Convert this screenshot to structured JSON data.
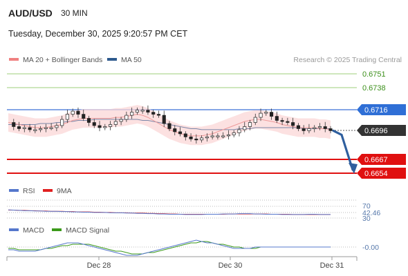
{
  "header": {
    "pair": "AUD/USD",
    "timeframe": "30 MIN",
    "datetime": "Tuesday, December 30, 2025 9:20:57 PM CET"
  },
  "legend": {
    "items": [
      {
        "label": "MA 20 + Bollinger Bands",
        "color": "#f08080"
      },
      {
        "label": "MA 50",
        "color": "#2e5a8e"
      }
    ],
    "copyright": "Research © 2025 Trading Central"
  },
  "levels": [
    {
      "value": "0.6751",
      "style": "green-line"
    },
    {
      "value": "0.6738",
      "style": "green-line"
    },
    {
      "value": "0.6716",
      "style": "blue-tag"
    },
    {
      "value": "0.6696",
      "style": "current-price-tag"
    },
    {
      "value": "0.6667",
      "style": "red-tag"
    },
    {
      "value": "0.6654",
      "style": "red-tag"
    }
  ],
  "indicators": {
    "rsi": {
      "legend": [
        "RSI",
        "9MA"
      ],
      "colors": [
        "#5577cc",
        "#e02020"
      ],
      "ticks": [
        "70",
        "42.46",
        "30"
      ]
    },
    "macd": {
      "legend": [
        "MACD",
        "MACD Signal"
      ],
      "colors": [
        "#5577cc",
        "#3b9a1a"
      ],
      "tick": "-0.00"
    }
  },
  "chart_data": {
    "type": "candlestick",
    "title": "AUD/USD",
    "timeframe": "30 MIN",
    "x_ticks": [
      "Dec 28",
      "Dec 30",
      "Dec 31"
    ],
    "ylim": [
      0.665,
      0.6756
    ],
    "price_series": [
      0.6704,
      0.67,
      0.6698,
      0.6699,
      0.6697,
      0.6697,
      0.6698,
      0.6699,
      0.6699,
      0.6701,
      0.6707,
      0.6712,
      0.6715,
      0.6712,
      0.6708,
      0.6704,
      0.6701,
      0.6699,
      0.67,
      0.6702,
      0.6705,
      0.6707,
      0.6711,
      0.6714,
      0.6716,
      0.6716,
      0.6714,
      0.6712,
      0.6711,
      0.6703,
      0.6698,
      0.6695,
      0.6693,
      0.669,
      0.6688,
      0.6687,
      0.6689,
      0.669,
      0.6691,
      0.6691,
      0.6691,
      0.6692,
      0.6694,
      0.6697,
      0.67,
      0.6704,
      0.6709,
      0.6713,
      0.6714,
      0.671,
      0.6706,
      0.6705,
      0.6704,
      0.6701,
      0.6698,
      0.6696,
      0.6698,
      0.6699,
      0.67,
      0.6698,
      0.6696
    ],
    "ma20": [
      0.6704,
      0.6703,
      0.6702,
      0.6701,
      0.67,
      0.6699,
      0.6699,
      0.6699,
      0.67,
      0.6701,
      0.6702,
      0.6704,
      0.6706,
      0.6707,
      0.6708,
      0.6708,
      0.6708,
      0.6708,
      0.6708,
      0.6708,
      0.6709,
      0.6709,
      0.671,
      0.6711,
      0.6712,
      0.6711,
      0.6709,
      0.6706,
      0.6703,
      0.67,
      0.6697,
      0.6695,
      0.6693,
      0.6692,
      0.6691,
      0.6691,
      0.6691,
      0.6692,
      0.6693,
      0.6695,
      0.6697,
      0.6699,
      0.6701,
      0.6703,
      0.6705,
      0.6706,
      0.6707,
      0.6707,
      0.6706,
      0.6705,
      0.6704,
      0.6702,
      0.6701,
      0.67,
      0.6699,
      0.6699,
      0.6699,
      0.6699,
      0.6698,
      0.6698,
      0.6697
    ],
    "ma50": [
      0.6702,
      0.6702,
      0.6702,
      0.6702,
      0.6702,
      0.6702,
      0.6703,
      0.6703,
      0.6703,
      0.6704,
      0.6704,
      0.6705,
      0.6705,
      0.6706,
      0.6706,
      0.6706,
      0.6707,
      0.6707,
      0.6707,
      0.6707,
      0.6707,
      0.6707,
      0.6707,
      0.6707,
      0.6707,
      0.6706,
      0.6706,
      0.6705,
      0.6704,
      0.6703,
      0.6702,
      0.6701,
      0.67,
      0.6699,
      0.6698,
      0.6698,
      0.6697,
      0.6697,
      0.6697,
      0.6697,
      0.6697,
      0.6697,
      0.6697,
      0.6698,
      0.6698,
      0.6698,
      0.6699,
      0.6699,
      0.6699,
      0.6699,
      0.6699,
      0.6699,
      0.6699,
      0.6699,
      0.6699,
      0.6698,
      0.6698,
      0.6698,
      0.6698,
      0.6698,
      0.6698
    ],
    "bollinger_width": 0.0009,
    "rsi_values": [
      58,
      57,
      56,
      55,
      55,
      54,
      54,
      53,
      53,
      53,
      52,
      52,
      51,
      51,
      50,
      50,
      49,
      49,
      49,
      48,
      48,
      48,
      47,
      47,
      46,
      46,
      45,
      45,
      44,
      44,
      43,
      43,
      43,
      42,
      42,
      42,
      42,
      43,
      43,
      43,
      44,
      44,
      44,
      45,
      45,
      45,
      44,
      44,
      43,
      43,
      43,
      42,
      42,
      42,
      42,
      42,
      43,
      43,
      42,
      42,
      42
    ],
    "rsi_ma": [
      57,
      57,
      56,
      56,
      55,
      55,
      54,
      54,
      53,
      53,
      53,
      52,
      52,
      51,
      51,
      51,
      50,
      50,
      49,
      49,
      48,
      48,
      48,
      47,
      47,
      47,
      46,
      46,
      45,
      45,
      44,
      44,
      43,
      43,
      43,
      43,
      43,
      43,
      43,
      43,
      43,
      44,
      44,
      44,
      44,
      44,
      44,
      44,
      44,
      43,
      43,
      43,
      43,
      42,
      42,
      42,
      42,
      42,
      42,
      42,
      42
    ],
    "macd_values": [
      -0.0002,
      -0.0002,
      -0.0003,
      -0.0003,
      -0.0003,
      -0.0003,
      -0.0002,
      -0.0001,
      0.0,
      0.0001,
      0.0002,
      0.0003,
      0.0003,
      0.0003,
      0.0002,
      0.0001,
      0.0,
      -0.0001,
      -0.0002,
      -0.0003,
      -0.0004,
      -0.0005,
      -0.0006,
      -0.0006,
      -0.0006,
      -0.0005,
      -0.0004,
      -0.0003,
      -0.0002,
      -0.0001,
      0.0,
      0.0001,
      0.0002,
      0.0003,
      0.0004,
      0.0005,
      0.0004,
      0.0003,
      0.0003,
      0.0002,
      0.0001,
      0.0,
      -0.0001,
      -0.0001,
      -0.0001,
      -0.0001,
      0.0,
      0.0,
      0.0,
      0.0,
      0.0,
      0.0,
      0.0,
      0.0,
      0.0,
      0.0,
      0.0,
      0.0,
      0.0,
      0.0,
      0.0
    ],
    "macd_signal": [
      -0.0001,
      -0.0001,
      -0.0002,
      -0.0002,
      -0.0002,
      -0.0002,
      -0.0002,
      -0.0001,
      -0.0001,
      0.0,
      0.0001,
      0.0001,
      0.0002,
      0.0002,
      0.0002,
      0.0002,
      0.0001,
      0.0,
      -0.0001,
      -0.0002,
      -0.0003,
      -0.0003,
      -0.0004,
      -0.0005,
      -0.0005,
      -0.0005,
      -0.0004,
      -0.0004,
      -0.0003,
      -0.0002,
      -0.0001,
      0.0,
      0.0001,
      0.0002,
      0.0003,
      0.0003,
      0.0004,
      0.0004,
      0.0003,
      0.0002,
      0.0002,
      0.0001,
      0.0,
      0.0,
      -0.0001,
      -0.0001,
      -0.0001,
      0.0,
      0.0,
      0.0,
      0.0,
      0.0,
      0.0,
      0.0,
      0.0,
      0.0,
      0.0,
      0.0,
      0.0,
      0.0,
      0.0
    ],
    "forecast_arrow": {
      "from": 0.6696,
      "to": 0.6654
    }
  }
}
